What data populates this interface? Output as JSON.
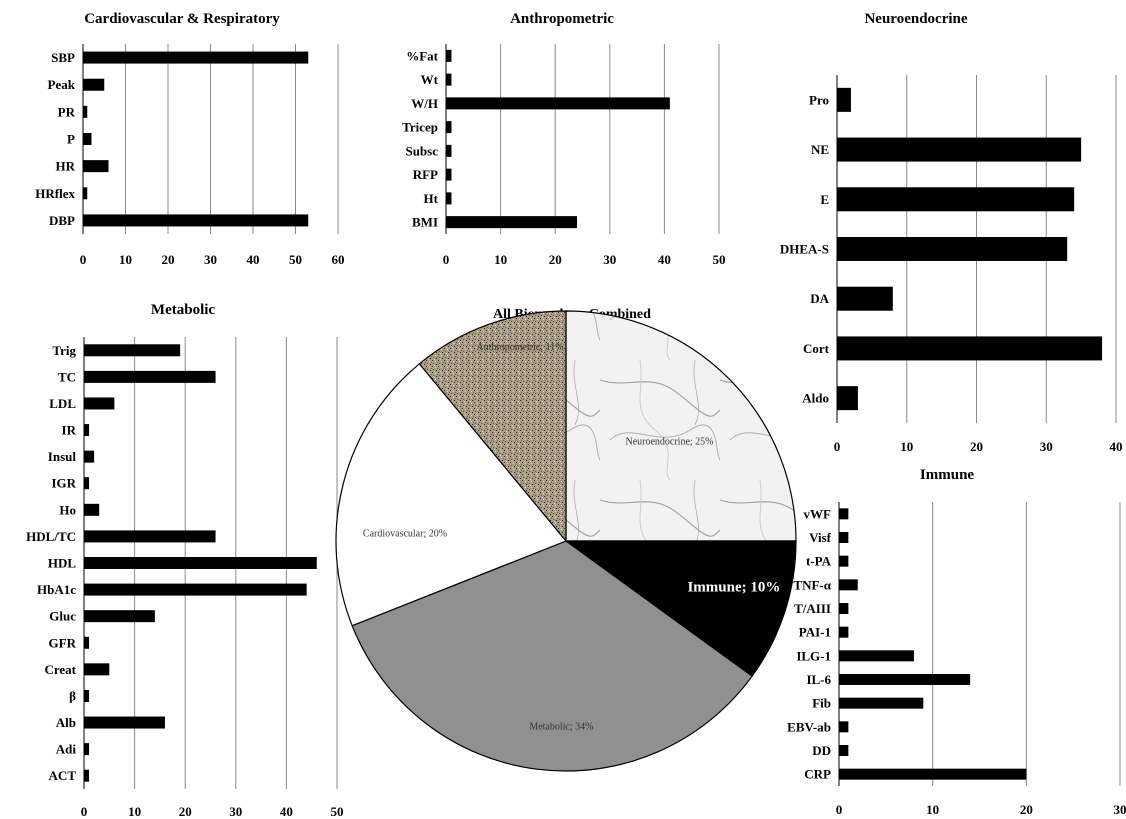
{
  "chart_data": [
    {
      "id": "cardio",
      "type": "bar",
      "orientation": "horizontal",
      "title": "Cardiovascular & Respiratory",
      "categories": [
        "SBP",
        "Peak",
        "PR",
        "P",
        "HR",
        "HRflex",
        "DBP"
      ],
      "values": [
        53,
        5,
        1,
        2,
        6,
        1,
        53
      ],
      "xlim": [
        0,
        60
      ],
      "xticks": [
        0,
        10,
        20,
        30,
        40,
        50,
        60
      ],
      "grid": true
    },
    {
      "id": "anthro",
      "type": "bar",
      "orientation": "horizontal",
      "title": "Anthropometric",
      "categories": [
        "%Fat",
        "Wt",
        "W/H",
        "Tricep",
        "Subsc",
        "RFP",
        "Ht",
        "BMI"
      ],
      "values": [
        1,
        1,
        41,
        1,
        1,
        1,
        1,
        24
      ],
      "xlim": [
        0,
        50
      ],
      "xticks": [
        0,
        10,
        20,
        30,
        40,
        50
      ],
      "grid": true
    },
    {
      "id": "neuro",
      "type": "bar",
      "orientation": "horizontal",
      "title": "Neuroendocrine",
      "categories": [
        "Pro",
        "NE",
        "E",
        "DHEA-S",
        "DA",
        "Cort",
        "Aldo"
      ],
      "values": [
        2,
        35,
        34,
        33,
        8,
        38,
        3
      ],
      "xlim": [
        0,
        40
      ],
      "xticks": [
        0,
        10,
        20,
        30,
        40
      ],
      "grid": true
    },
    {
      "id": "metabolic",
      "type": "bar",
      "orientation": "horizontal",
      "title": "Metabolic",
      "categories": [
        "Trig",
        "TC",
        "LDL",
        "IR",
        "Insul",
        "IGR",
        "Ho",
        "HDL/TC",
        "HDL",
        "HbA1c",
        "Gluc",
        "GFR",
        "Creat",
        "β",
        "Alb",
        "Adi",
        "ACT"
      ],
      "values": [
        19,
        26,
        6,
        1,
        2,
        1,
        3,
        26,
        46,
        44,
        14,
        1,
        5,
        1,
        16,
        1,
        1
      ],
      "xlim": [
        0,
        50
      ],
      "xticks": [
        0,
        10,
        20,
        30,
        40,
        50
      ],
      "grid": true
    },
    {
      "id": "immune",
      "type": "bar",
      "orientation": "horizontal",
      "title": "Immune",
      "categories": [
        "vWF",
        "Visf",
        "t-PA",
        "TNF-α",
        "T/AIII",
        "PAI-1",
        "ILG-1",
        "IL-6",
        "Fib",
        "EBV-ab",
        "DD",
        "CRP"
      ],
      "values": [
        1,
        1,
        1,
        2,
        1,
        1,
        8,
        14,
        9,
        1,
        1,
        20
      ],
      "xlim": [
        0,
        30
      ],
      "xticks": [
        0,
        10,
        20,
        30
      ],
      "grid": true
    },
    {
      "id": "combined",
      "type": "pie",
      "title": "All Biomarkers Combined",
      "slices": [
        {
          "label": "Neuroendocrine; 25%",
          "value": 25,
          "fill": "marble"
        },
        {
          "label": "Immune; 10%",
          "value": 10,
          "fill": "#000000"
        },
        {
          "label": "Metabolic; 34%",
          "value": 34,
          "fill": "#909090"
        },
        {
          "label": "Cardiovascular; 20%",
          "value": 20,
          "fill": "#ffffff"
        },
        {
          "label": "Anthropometric; 11%",
          "value": 11,
          "fill": "granite"
        }
      ]
    }
  ]
}
